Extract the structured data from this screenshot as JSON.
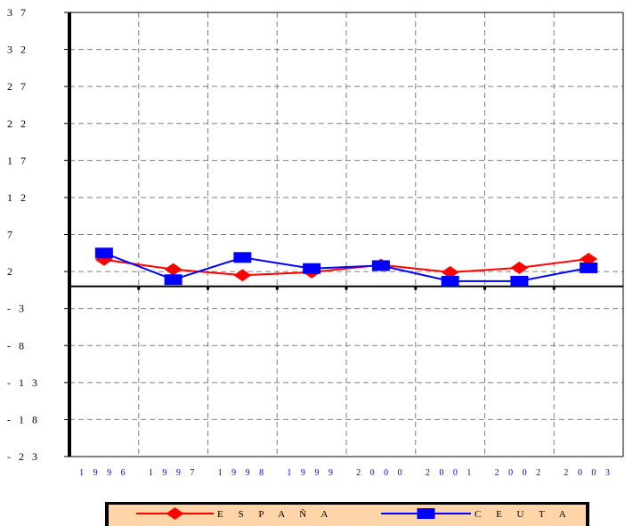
{
  "chart_data": {
    "type": "line",
    "categories": [
      "1996",
      "1997",
      "1998",
      "1999",
      "2000",
      "2001",
      "2002",
      "2003"
    ],
    "x_tick_labels": [
      "1 9 9 6",
      "1 9 9 7",
      "1 9 9 8",
      "1 9 9 9",
      "2 0 0 0",
      "2 0 0 1",
      "2 0 0 2",
      "2 0 0 3"
    ],
    "y_ticks": [
      37,
      32,
      27,
      22,
      17,
      12,
      7,
      2,
      -3,
      -8,
      -13,
      -18,
      -23
    ],
    "y_tick_labels": [
      "3 7",
      "3 2",
      "2 7",
      "2 2",
      "1 7",
      "1 2",
      "7",
      "2",
      "- 3",
      "- 8",
      "- 1 3",
      "- 1 8",
      "- 2 3"
    ],
    "ylim": [
      -23,
      37
    ],
    "zero_line": 0,
    "grid": true,
    "legend_position": "bottom",
    "series": [
      {
        "name": "E S P A Ñ A",
        "color": "#ff0000",
        "marker": "diamond",
        "values": [
          3.6,
          2.3,
          1.5,
          1.9,
          2.9,
          1.9,
          2.5,
          3.7
        ]
      },
      {
        "name": "C E U T A",
        "color": "#0000ff",
        "marker": "square",
        "values": [
          4.5,
          0.9,
          3.9,
          2.4,
          2.8,
          0.7,
          0.7,
          2.5
        ]
      }
    ],
    "colors": {
      "axis": "#000000",
      "grid": "#808080",
      "x_tick_text": "#0000ff",
      "legend_bg": "#fdd5a9"
    }
  }
}
